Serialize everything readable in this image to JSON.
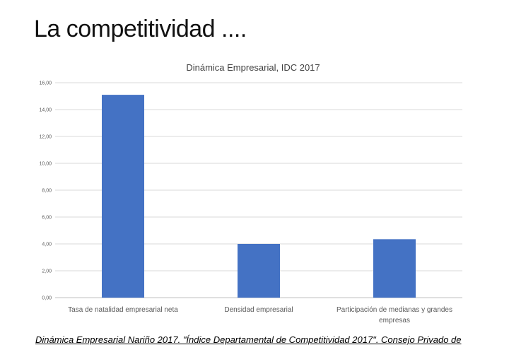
{
  "slide": {
    "title": "La competitividad ....",
    "caption": "Dinámica Empresarial Nariño 2017. \"Índice Departamental de Competitividad 2017\". Consejo Privado de"
  },
  "colors": {
    "bar": "#4472c4",
    "grid": "#d9d9d9",
    "text": "#595959"
  },
  "chart_data": {
    "type": "bar",
    "title": "Dinámica Empresarial, IDC 2017",
    "xlabel": "",
    "ylabel": "",
    "ylim": [
      0,
      16
    ],
    "yticks": [
      "0,00",
      "2,00",
      "4,00",
      "6,00",
      "8,00",
      "10,00",
      "12,00",
      "14,00",
      "16,00"
    ],
    "categories": [
      [
        "Tasa de natalidad empresarial neta"
      ],
      [
        "Densidad empresarial"
      ],
      [
        "Participación de medianas y grandes",
        "empresas"
      ]
    ],
    "values": [
      15.1,
      4.0,
      4.35
    ],
    "grid": true,
    "legend": "none"
  }
}
